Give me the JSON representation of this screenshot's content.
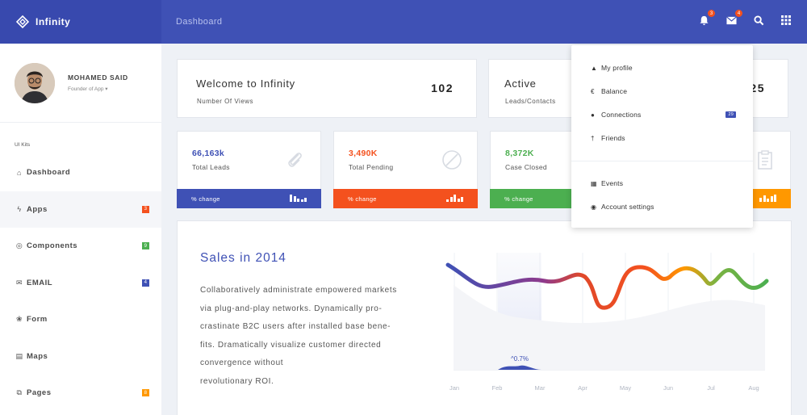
{
  "brand": {
    "name": "Infinity",
    "logo_icon": "diamond-logo-icon"
  },
  "header": {
    "breadcrumb": "Dashboard",
    "notifications_count": "3",
    "messages_count": "4",
    "icons": [
      "bell-icon",
      "envelope-icon",
      "search-icon",
      "grid-icon"
    ]
  },
  "profile": {
    "name": "MOHAMED SAID",
    "role": "Founder of App ▾"
  },
  "sidebar": {
    "section_title": "UI Kits",
    "items": [
      {
        "label": "Dashboard",
        "icon": "home-icon",
        "glyph": "⌂",
        "badge": "",
        "badge_color": ""
      },
      {
        "label": "Apps",
        "icon": "bolt-icon",
        "glyph": "ϟ",
        "badge": "3",
        "badge_color": "#f4511e"
      },
      {
        "label": "Components",
        "icon": "components-icon",
        "glyph": "◎",
        "badge": "9",
        "badge_color": "#4caf50"
      },
      {
        "label": "EMAIL",
        "icon": "envelope-icon",
        "glyph": "✉",
        "badge": "4",
        "badge_color": "#3f51b5"
      },
      {
        "label": "Form",
        "icon": "form-icon",
        "glyph": "❀",
        "badge": "",
        "badge_color": ""
      },
      {
        "label": "Maps",
        "icon": "map-icon",
        "glyph": "▤",
        "badge": "",
        "badge_color": ""
      },
      {
        "label": "Pages",
        "icon": "pages-icon",
        "glyph": "⧉",
        "badge": "8",
        "badge_color": "#ff9800"
      }
    ]
  },
  "welcome": {
    "title": "Welcome to Infinity",
    "subtitle": "Number Of Views",
    "value": "102"
  },
  "active": {
    "title": "Active",
    "subtitle": "Leads/Contacts",
    "value": "25"
  },
  "stats": [
    {
      "value": "66,163k",
      "label": "Total Leads",
      "change": "% change",
      "color": "#3f51b5",
      "icon": "paperclip-icon"
    },
    {
      "value": "3,490K",
      "label": "Total Pending",
      "change": "% change",
      "color": "#f4511e",
      "icon": "ban-icon"
    },
    {
      "value": "8,372K",
      "label": "Case Closed",
      "change": "% change",
      "color": "#4caf50",
      "icon": "check-icon"
    },
    {
      "value": "",
      "label": "",
      "change": "",
      "color": "#ff9800",
      "icon": "clipboard-icon"
    }
  ],
  "sales": {
    "title": "Sales in 2014",
    "lines": [
      "Collaboratively administrate empowered markets",
      "via plug-and-play networks. Dynamically pro-",
      "crastinate B2C users after installed base bene-",
      "fits. Dramatically visualize customer directed",
      "convergence without",
      "revolutionary ROI."
    ]
  },
  "chart_data": {
    "type": "line",
    "x": [
      "Jan",
      "Feb",
      "Mar",
      "Apr",
      "May",
      "Jun",
      "Jul",
      "Aug"
    ],
    "annotation": "^0.7%",
    "grid": true,
    "legend": "none"
  },
  "dropdown": {
    "items": [
      {
        "label": "My profile",
        "icon": "user-icon",
        "glyph": "▲",
        "badge": ""
      },
      {
        "label": "Balance",
        "icon": "euro-icon",
        "glyph": "€",
        "badge": ""
      },
      {
        "label": "Connections",
        "icon": "globe-icon",
        "glyph": "●",
        "badge": "29"
      },
      {
        "label": "Friends",
        "icon": "person-icon",
        "glyph": "†",
        "badge": ""
      },
      {
        "label": "Events",
        "icon": "calendar-icon",
        "glyph": "▦",
        "badge": ""
      },
      {
        "label": "Account settings",
        "icon": "lifebuoy-icon",
        "glyph": "◉",
        "badge": ""
      }
    ]
  }
}
